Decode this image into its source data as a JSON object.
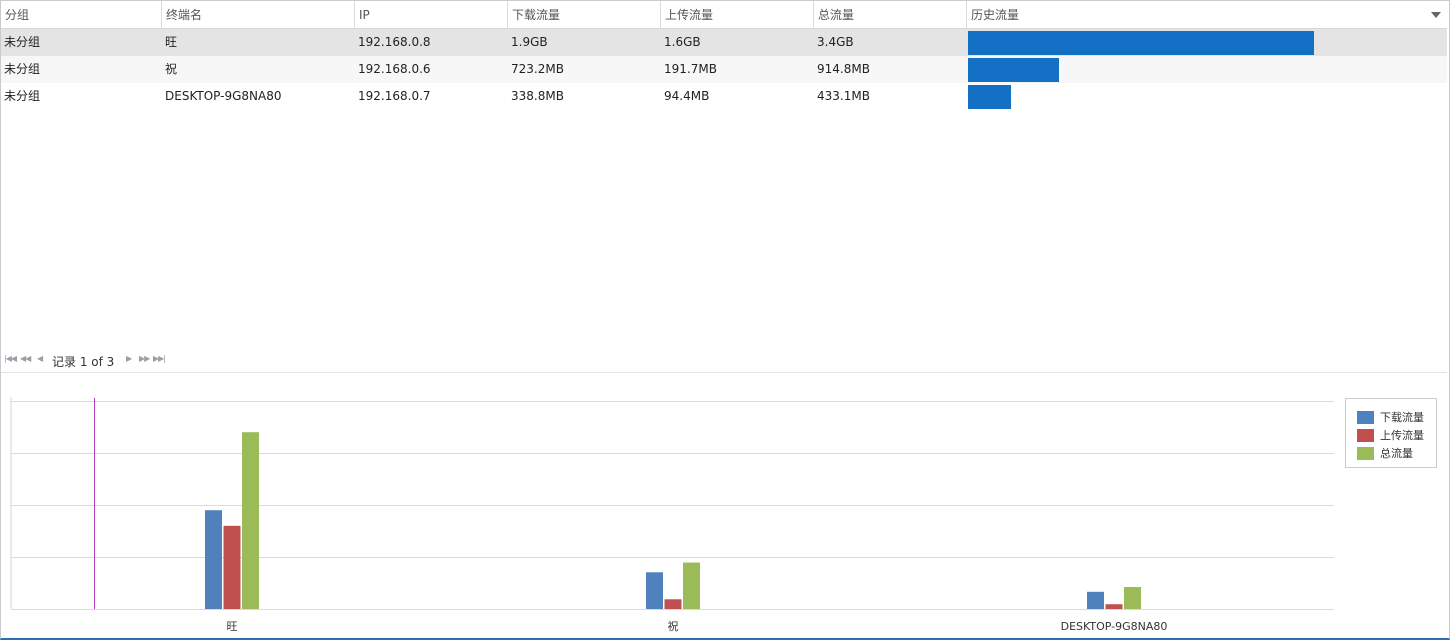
{
  "grid": {
    "columns": [
      "分组",
      "终端名",
      "IP",
      "下载流量",
      "上传流量",
      "总流量",
      "历史流量"
    ],
    "rows": [
      {
        "group": "未分组",
        "name": "旺",
        "ip": "192.168.0.8",
        "download": "1.9GB",
        "upload": "1.6GB",
        "total": "3.4GB",
        "history_fraction": 1.0
      },
      {
        "group": "未分组",
        "name": "祝",
        "ip": "192.168.0.6",
        "download": "723.2MB",
        "upload": "191.7MB",
        "total": "914.8MB",
        "history_fraction": 0.263
      },
      {
        "group": "未分组",
        "name": "DESKTOP-9G8NA80",
        "ip": "192.168.0.7",
        "download": "338.8MB",
        "upload": "94.4MB",
        "total": "433.1MB",
        "history_fraction": 0.124
      }
    ],
    "bar_color": "#1470c4"
  },
  "pager": {
    "text": "记录 1 of 3",
    "first_icon": "first-page-icon",
    "prev_page_icon": "prev-page-icon",
    "prev_icon": "prev-record-icon",
    "next_icon": "next-record-icon",
    "next_page_icon": "next-page-icon",
    "last_icon": "last-page-icon"
  },
  "chart_data": {
    "type": "bar",
    "categories": [
      "旺",
      "祝",
      "DESKTOP-9G8NA80"
    ],
    "series": [
      {
        "name": "下载流量",
        "values": [
          1.9,
          0.706,
          0.331
        ],
        "color": "#4f81bd"
      },
      {
        "name": "上传流量",
        "values": [
          1.6,
          0.187,
          0.092
        ],
        "color": "#c0504d"
      },
      {
        "name": "总流量",
        "values": [
          3.4,
          0.893,
          0.423
        ],
        "color": "#9bbb59"
      }
    ],
    "ylim": [
      0,
      4
    ],
    "grid": true,
    "legend": "right",
    "marker_line_color": "#b040c0"
  }
}
